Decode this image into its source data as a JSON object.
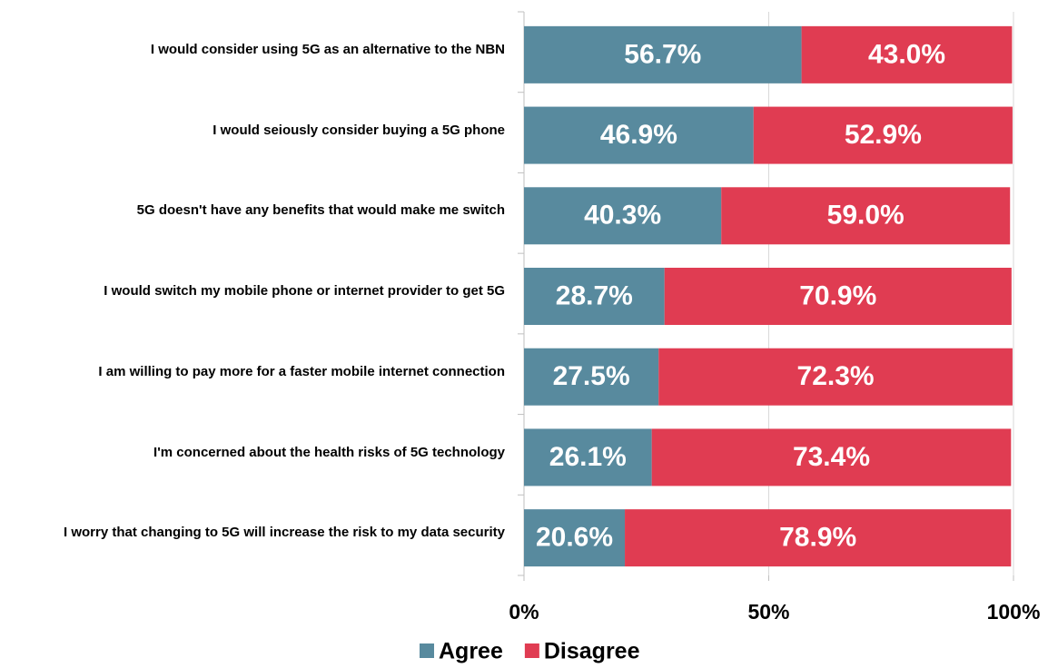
{
  "chart_data": {
    "type": "stacked_bar_horizontal",
    "categories": [
      "I would consider using 5G as an alternative to the NBN",
      "I would seiously consider buying a 5G phone",
      "5G doesn't have any benefits that would make me switch",
      "I would switch my mobile phone or internet provider to get 5G",
      "I am willing to pay more for a faster mobile internet connection",
      "I'm concerned about the health risks of 5G technology",
      "I worry that changing to 5G will increase the risk to my data security"
    ],
    "series": [
      {
        "name": "Agree",
        "color": "#588a9e",
        "values": [
          56.7,
          46.9,
          40.3,
          28.7,
          27.5,
          26.1,
          20.6
        ],
        "value_labels": [
          "56.7%",
          "46.9%",
          "40.3%",
          "28.7%",
          "27.5%",
          "26.1%",
          "20.6%"
        ]
      },
      {
        "name": "Disagree",
        "color": "#e03c52",
        "values": [
          43.0,
          52.9,
          59.0,
          70.9,
          72.3,
          73.4,
          78.9
        ],
        "value_labels": [
          "43.0%",
          "52.9%",
          "59.0%",
          "70.9%",
          "72.3%",
          "73.4%",
          "78.9%"
        ]
      }
    ],
    "xlim": [
      0,
      100
    ],
    "xticks": [
      {
        "value": 0,
        "label": "0%"
      },
      {
        "value": 50,
        "label": "50%"
      },
      {
        "value": 100,
        "label": "100%"
      }
    ],
    "grid": true,
    "legend": "bottom"
  }
}
